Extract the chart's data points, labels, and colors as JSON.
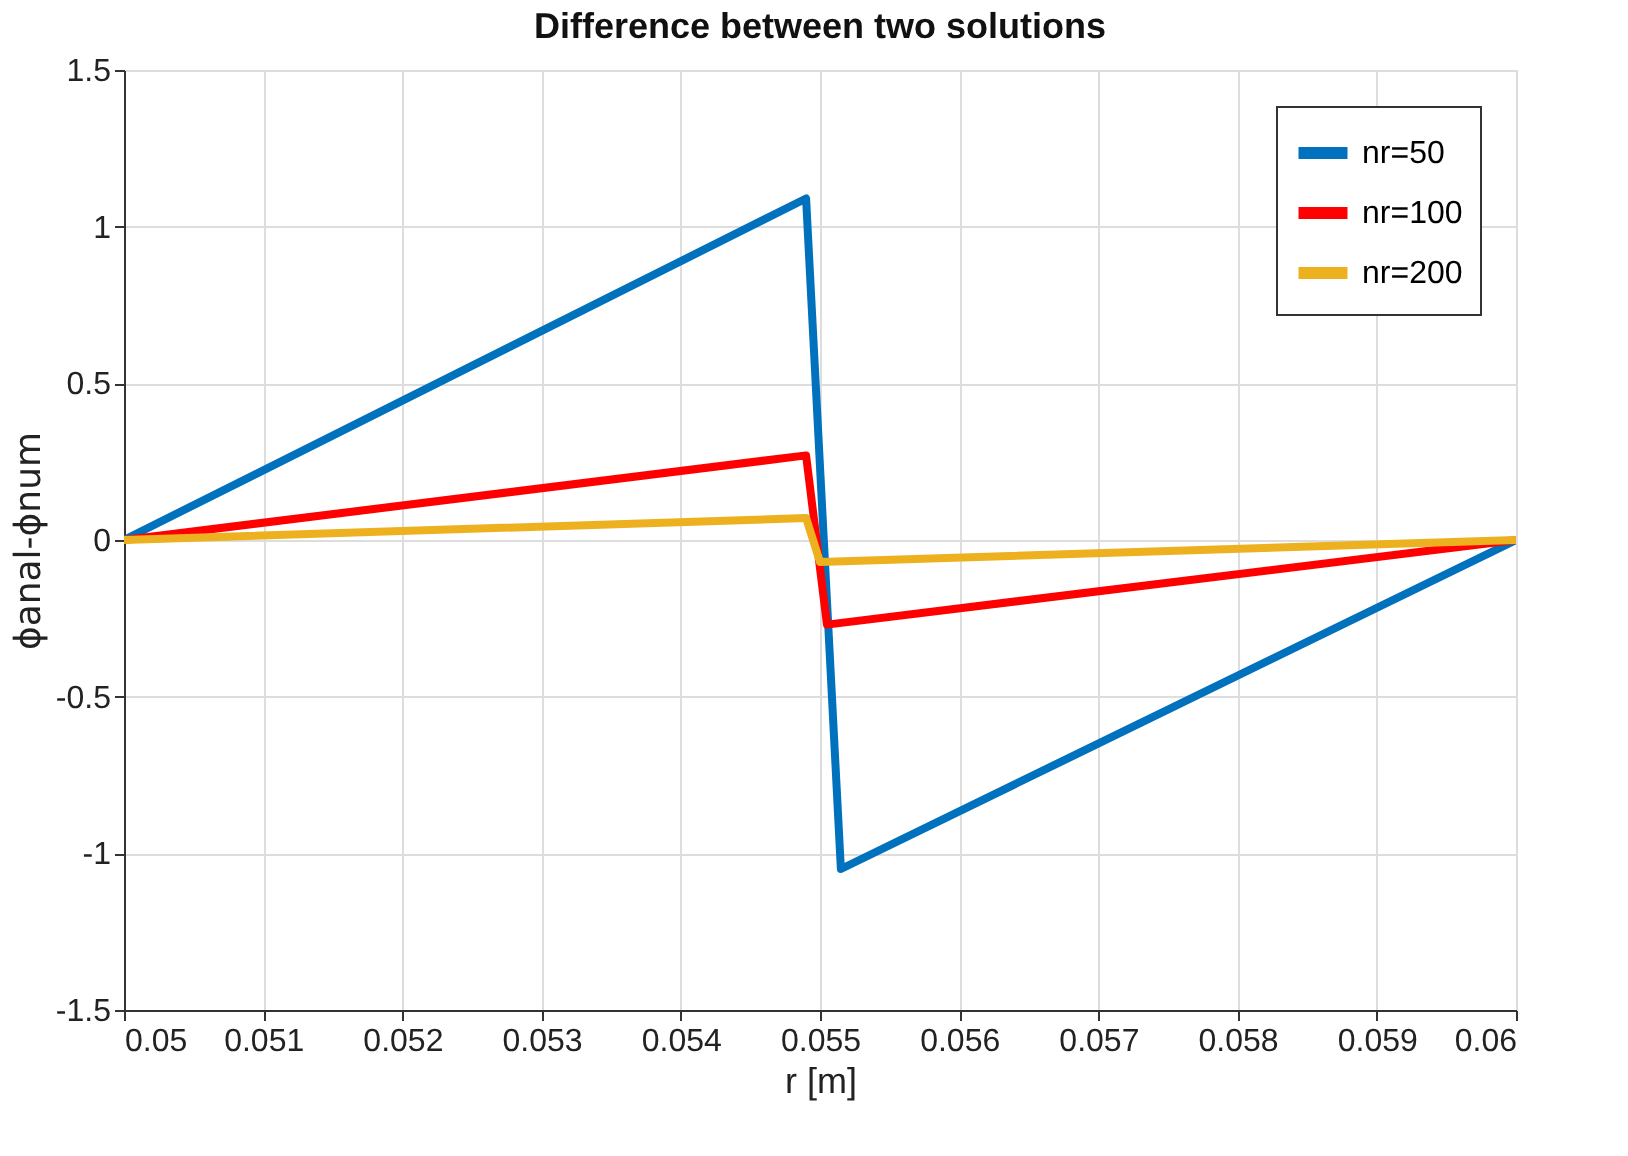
{
  "chart_data": {
    "type": "line",
    "title": "Difference between two solutions",
    "xlabel": "r [m]",
    "ylabel": "ϕanal-ϕnum",
    "series": [
      {
        "name": "nr=50",
        "color": "#0072bd",
        "x": [
          0.05,
          0.0549,
          0.05515,
          0.06
        ],
        "values": [
          0,
          1.09,
          -1.05,
          0
        ]
      },
      {
        "name": "nr=100",
        "color": "#ff0000",
        "x": [
          0.05,
          0.0549,
          0.05505,
          0.06
        ],
        "values": [
          0,
          0.27,
          -0.27,
          0
        ]
      },
      {
        "name": "nr=200",
        "color": "#edb120",
        "x": [
          0.05,
          0.0549,
          0.055,
          0.06
        ],
        "values": [
          0,
          0.07,
          -0.07,
          0
        ]
      }
    ],
    "xlim": [
      0.05,
      0.06
    ],
    "xticks": [
      0.05,
      0.051,
      0.052,
      0.053,
      0.054,
      0.055,
      0.056,
      0.057,
      0.058,
      0.059,
      0.06
    ],
    "ylim": [
      -1.5,
      1.5
    ],
    "yticks": [
      -1.5,
      -1,
      -0.5,
      0,
      0.5,
      1,
      1.5
    ],
    "grid": true,
    "legend": "top right",
    "marker": "none",
    "line_style": "solid"
  }
}
